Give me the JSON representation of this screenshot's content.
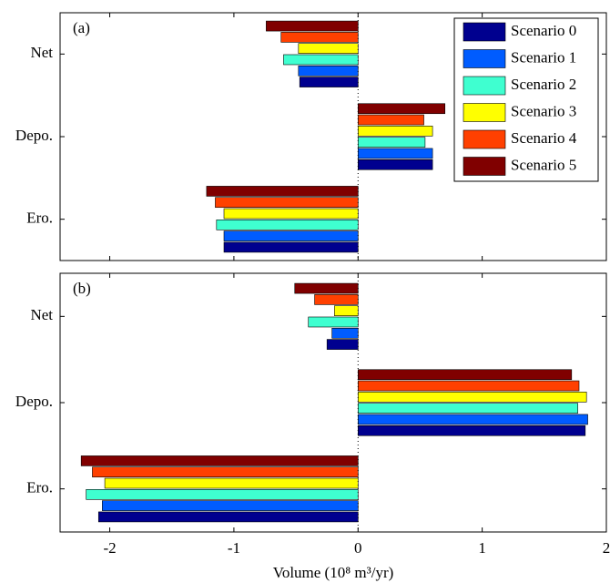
{
  "chart_data": [
    {
      "type": "barh",
      "label": "(a)",
      "categories": [
        "Net",
        "Depo.",
        "Ero."
      ],
      "series": [
        {
          "name": "Scenario 0",
          "color": "#00008f",
          "values": [
            -0.47,
            0.6,
            -1.08
          ]
        },
        {
          "name": "Scenario 1",
          "color": "#005cff",
          "values": [
            -0.48,
            0.6,
            -1.08
          ]
        },
        {
          "name": "Scenario 2",
          "color": "#3fffd0",
          "values": [
            -0.6,
            0.54,
            -1.14
          ]
        },
        {
          "name": "Scenario 3",
          "color": "#ffff00",
          "values": [
            -0.48,
            0.6,
            -1.08
          ]
        },
        {
          "name": "Scenario 4",
          "color": "#ff4000",
          "values": [
            -0.62,
            0.53,
            -1.15
          ]
        },
        {
          "name": "Scenario 5",
          "color": "#800000",
          "values": [
            -0.74,
            0.7,
            -1.22
          ]
        }
      ],
      "xlim": [
        -2.4,
        2
      ],
      "xticks": [
        -2,
        -1,
        0,
        1,
        2
      ],
      "legend": "upper right"
    },
    {
      "type": "barh",
      "label": "(b)",
      "categories": [
        "Net",
        "Depo.",
        "Ero."
      ],
      "series": [
        {
          "color": "#00008f",
          "values": [
            -0.25,
            1.83,
            -2.09
          ]
        },
        {
          "color": "#005cff",
          "values": [
            -0.21,
            1.85,
            -2.06
          ]
        },
        {
          "color": "#3fffd0",
          "values": [
            -0.4,
            1.77,
            -2.19
          ]
        },
        {
          "color": "#ffff00",
          "values": [
            -0.19,
            1.84,
            -2.04
          ]
        },
        {
          "color": "#ff4000",
          "values": [
            -0.35,
            1.78,
            -2.14
          ]
        },
        {
          "color": "#800000",
          "values": [
            -0.51,
            1.72,
            -2.23
          ]
        }
      ],
      "xlim": [
        -2.4,
        2
      ],
      "xticks": [
        -2,
        -1,
        0,
        1,
        2
      ],
      "xlabel": "Volume (10⁸ m³/yr)"
    }
  ]
}
